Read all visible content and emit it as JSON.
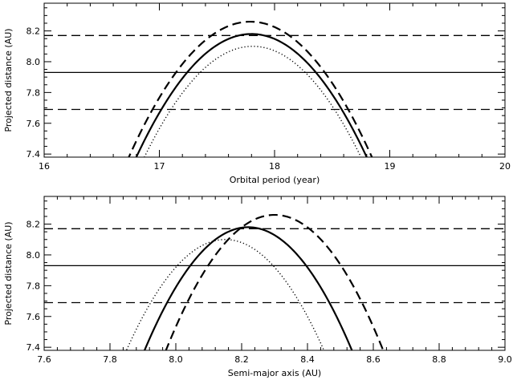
{
  "chart_data": [
    {
      "type": "line",
      "xlabel": "Orbital period (year)",
      "ylabel": "Projected distance (AU)",
      "xlim": [
        16,
        20
      ],
      "ylim": [
        7.38,
        8.38
      ],
      "xticks": [
        "16",
        "17",
        "18",
        "19",
        "20"
      ],
      "yticks": [
        "7.4",
        "7.6",
        "7.8",
        "8.0",
        "8.2"
      ],
      "hlines": [
        {
          "y": 8.17,
          "style": "dashed"
        },
        {
          "y": 7.93,
          "style": "solid"
        },
        {
          "y": 7.69,
          "style": "dashed"
        }
      ],
      "curves": [
        {
          "style": "solid",
          "vertex_x": 17.8,
          "vertex_y": 8.18,
          "x_at_7_38": [
            16.82,
            18.82
          ]
        },
        {
          "style": "dashed",
          "vertex_x": 17.79,
          "vertex_y": 8.26,
          "x_at_7_38": [
            16.77,
            18.88
          ]
        },
        {
          "style": "dotted",
          "vertex_x": 17.81,
          "vertex_y": 8.1,
          "x_at_7_38": [
            16.88,
            18.76
          ]
        }
      ]
    },
    {
      "type": "line",
      "xlabel": "Semi-major axis (AU)",
      "ylabel": "Projected distance (AU)",
      "xlim": [
        7.6,
        9.0
      ],
      "ylim": [
        7.38,
        8.38
      ],
      "xticks": [
        "7.6",
        "7.8",
        "8.0",
        "8.2",
        "8.4",
        "8.6",
        "8.8",
        "9.0"
      ],
      "yticks": [
        "7.4",
        "7.6",
        "7.8",
        "8.0",
        "8.2"
      ],
      "hlines": [
        {
          "y": 8.17,
          "style": "dashed"
        },
        {
          "y": 7.93,
          "style": "solid"
        },
        {
          "y": 7.69,
          "style": "dashed"
        }
      ],
      "curves": [
        {
          "style": "solid",
          "vertex_x": 8.22,
          "vertex_y": 8.18,
          "x_at_7_38": [
            7.91,
            8.54
          ]
        },
        {
          "style": "dashed",
          "vertex_x": 8.3,
          "vertex_y": 8.26,
          "x_at_7_38": [
            7.97,
            8.63
          ]
        },
        {
          "style": "dotted",
          "vertex_x": 8.15,
          "vertex_y": 8.1,
          "x_at_7_38": [
            7.85,
            8.45
          ]
        }
      ]
    }
  ]
}
